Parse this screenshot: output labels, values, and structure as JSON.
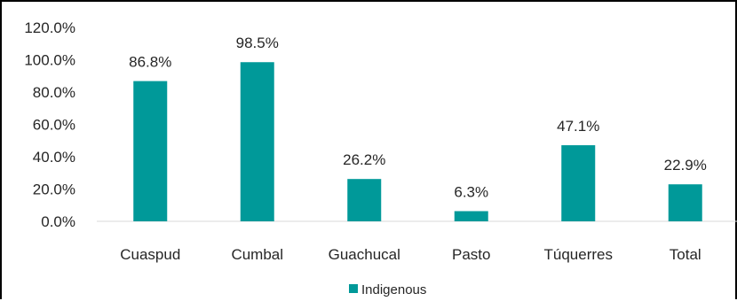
{
  "chart_data": {
    "type": "bar",
    "categories": [
      "Cuaspud",
      "Cumbal",
      "Guachucal",
      "Pasto",
      "Túquerres",
      "Total"
    ],
    "series": [
      {
        "name": "Indigenous",
        "values": [
          86.8,
          98.5,
          26.2,
          6.3,
          47.1,
          22.9
        ]
      }
    ],
    "data_labels": [
      "86.8%",
      "98.5%",
      "26.2%",
      "6.3%",
      "47.1%",
      "22.9%"
    ],
    "y_ticks": [
      "0.0%",
      "20.0%",
      "40.0%",
      "60.0%",
      "80.0%",
      "100.0%",
      "120.0%"
    ],
    "ylim": [
      0,
      120
    ],
    "grid": false,
    "legend_position": "bottom",
    "bar_color": "#009999"
  }
}
